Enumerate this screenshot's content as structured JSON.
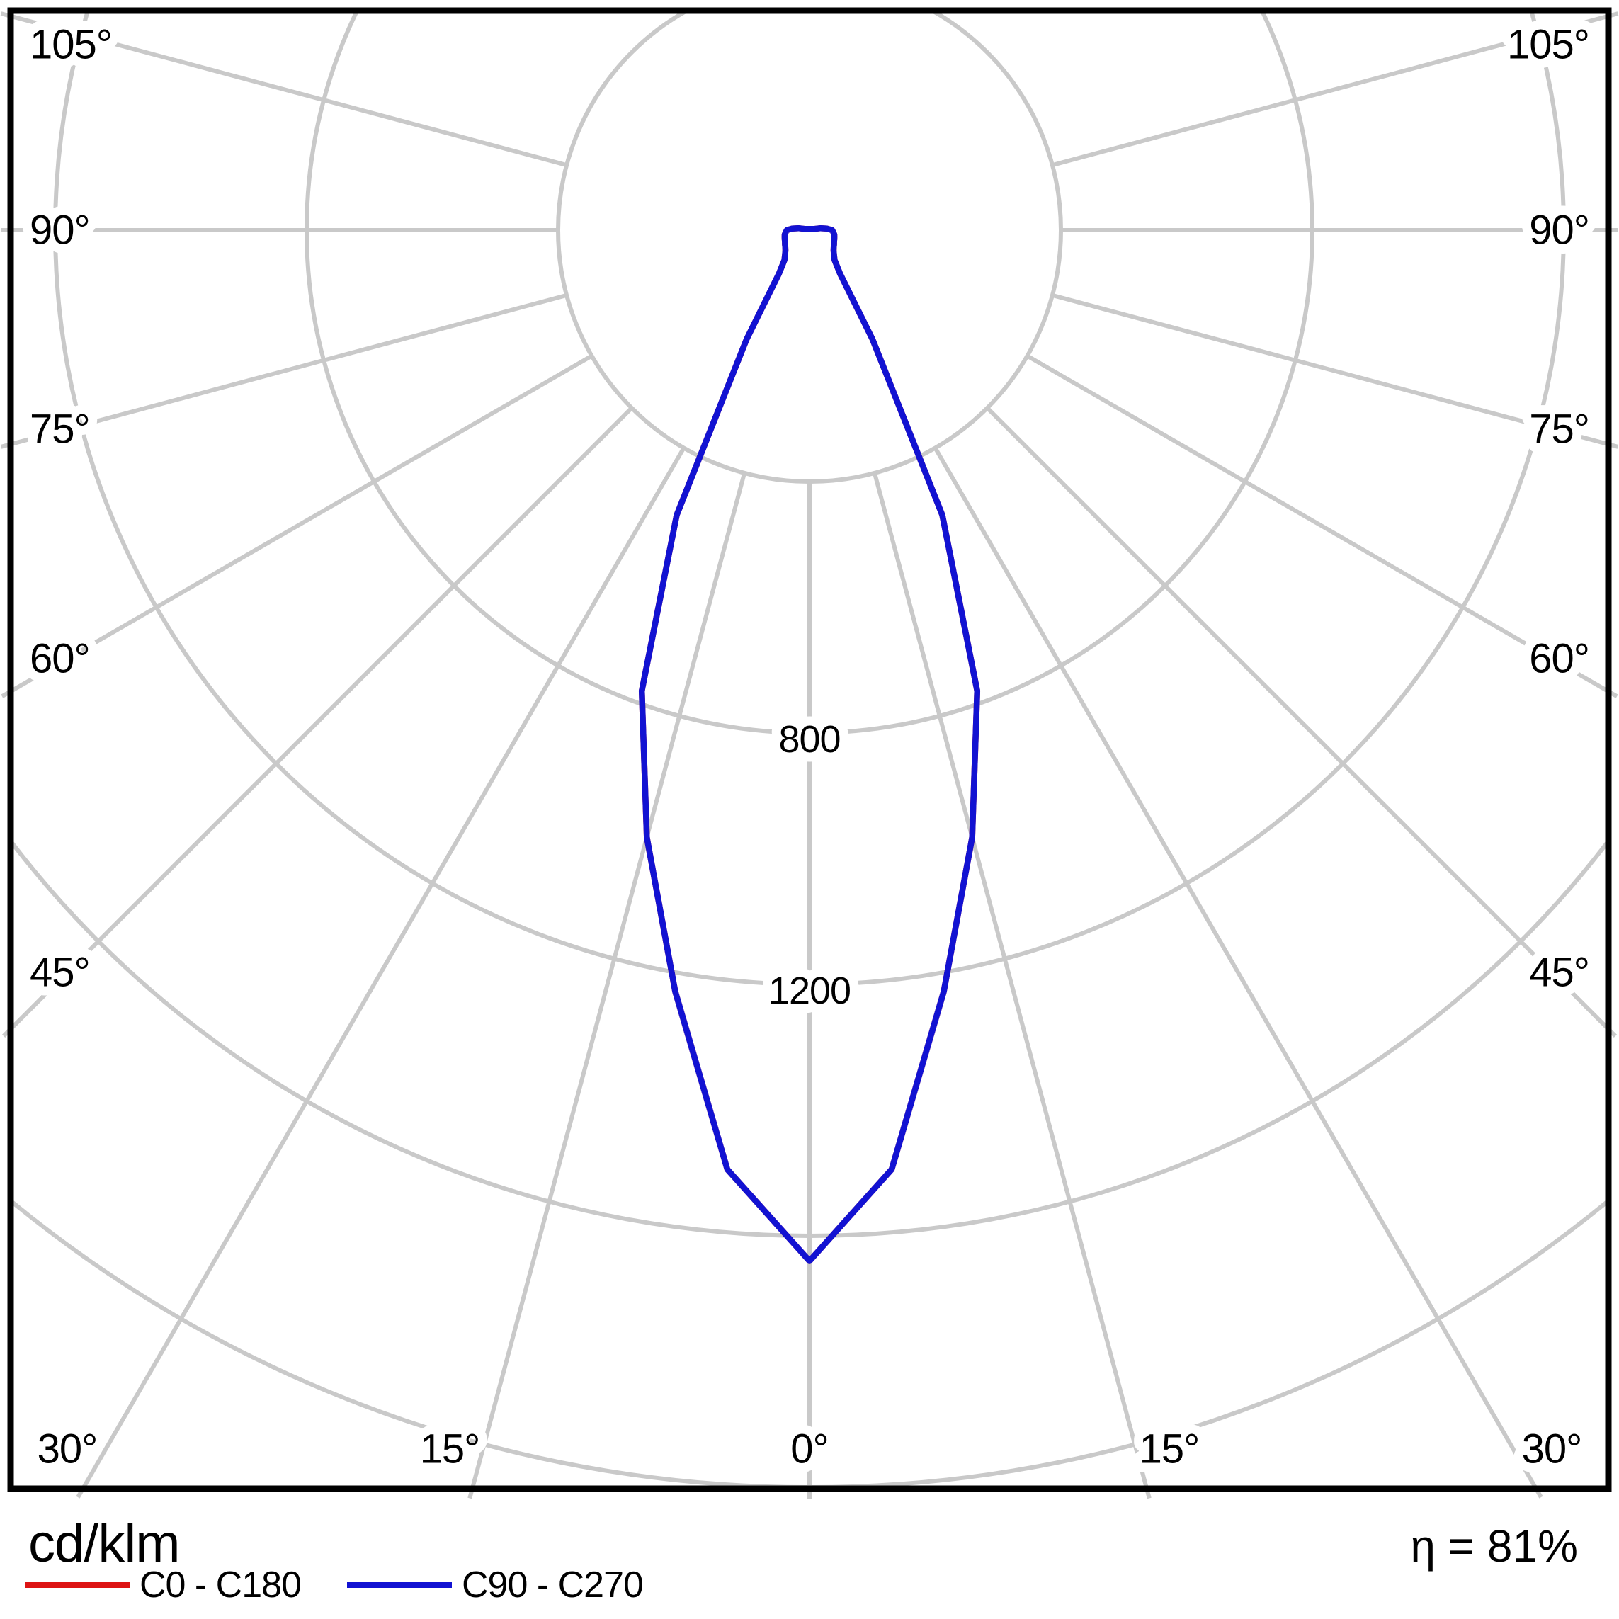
{
  "chart_data": {
    "type": "line",
    "subtype": "polar-photometric-distribution",
    "title": "",
    "units_label": "cd/klm",
    "efficiency": "η = 81%",
    "grid": "on",
    "legend_position": "bottom",
    "angle_axis": {
      "tick_step_deg": 15,
      "max_angle_deg": 105,
      "tick_labels": [
        "0°",
        "15°",
        "30°",
        "45°",
        "60°",
        "75°",
        "90°",
        "105°"
      ]
    },
    "radial_axis": {
      "gridline_values": [
        400,
        800,
        1200,
        1600,
        2000
      ],
      "labeled_values": [
        800,
        1200
      ],
      "labels": [
        "800",
        "1200"
      ],
      "rlim": [
        0,
        2000
      ]
    },
    "series": [
      {
        "name": "C0 - C180",
        "color": "#dd1414",
        "angles_deg": [
          0,
          5,
          10,
          15,
          20,
          25,
          30,
          35,
          40,
          45,
          50,
          55,
          60,
          65,
          70,
          75,
          80,
          85,
          90,
          95,
          100,
          105
        ],
        "values_cd_per_klm": [
          1640,
          1500,
          1230,
          1000,
          780,
          500,
          200,
          85,
          62,
          55,
          50,
          47,
          45,
          43,
          42,
          41,
          40,
          38,
          36,
          28,
          18,
          8
        ],
        "symmetric": true,
        "note": "hidden exactly beneath C90 - C270 curve"
      },
      {
        "name": "C90 - C270",
        "color": "#1212d2",
        "angles_deg": [
          0,
          5,
          10,
          15,
          20,
          25,
          30,
          35,
          40,
          45,
          50,
          55,
          60,
          65,
          70,
          75,
          80,
          85,
          90,
          95,
          100,
          105
        ],
        "values_cd_per_klm": [
          1640,
          1500,
          1230,
          1000,
          780,
          500,
          200,
          85,
          62,
          55,
          50,
          47,
          45,
          43,
          42,
          41,
          40,
          38,
          36,
          28,
          18,
          8
        ],
        "symmetric": true
      }
    ],
    "colors": {
      "grid": "#c9c9c9",
      "frame": "#000000",
      "background": "#ffffff",
      "text": "#000000"
    }
  },
  "footer": {
    "units_label": "cd/klm",
    "efficiency": "η = 81%",
    "legend": [
      {
        "label": "C0 - C180",
        "color": "#dd1414"
      },
      {
        "label": "C90 - C270",
        "color": "#1212d2"
      }
    ]
  }
}
